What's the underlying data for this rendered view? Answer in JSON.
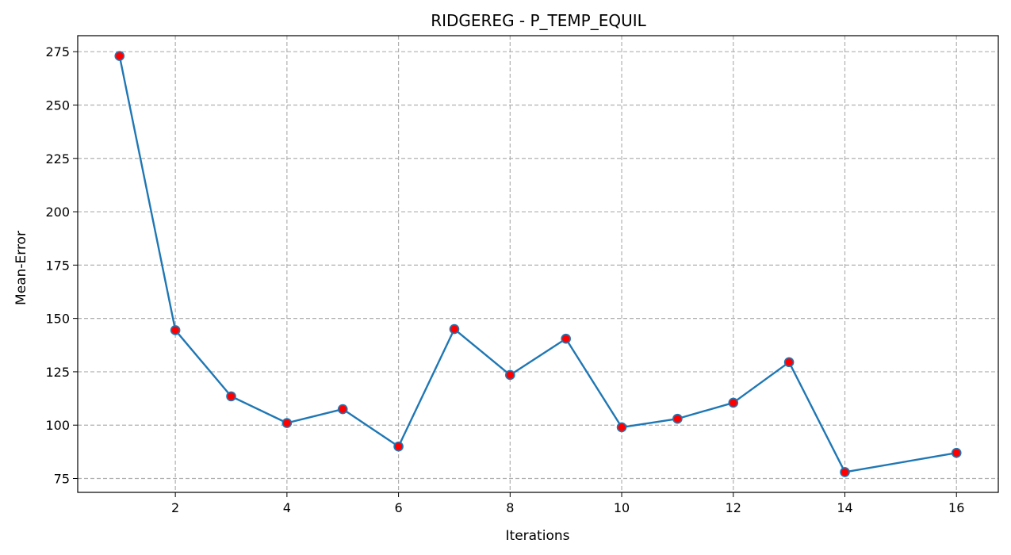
{
  "chart_data": {
    "type": "line",
    "title": "RIDGEREG - P_TEMP_EQUIL",
    "xlabel": "Iterations",
    "ylabel": "Mean-Error",
    "x": [
      1,
      2,
      3,
      4,
      5,
      6,
      7,
      8,
      9,
      10,
      11,
      12,
      13,
      14,
      16
    ],
    "series": [
      {
        "values": [
          273,
          144.5,
          113.5,
          101,
          107.5,
          90,
          145,
          123.5,
          140.5,
          99,
          103,
          110.5,
          129.5,
          78,
          87
        ]
      }
    ],
    "xticks": [
      2,
      4,
      6,
      8,
      10,
      12,
      14,
      16
    ],
    "yticks": [
      75,
      100,
      125,
      150,
      175,
      200,
      225,
      250,
      275
    ],
    "xlim": [
      0.25,
      16.75
    ],
    "ylim": [
      68.5,
      282.5
    ],
    "grid": true,
    "line_color": "#1f77b4",
    "marker_fill": "#ff0000",
    "marker_edge": "#1f77b4"
  }
}
